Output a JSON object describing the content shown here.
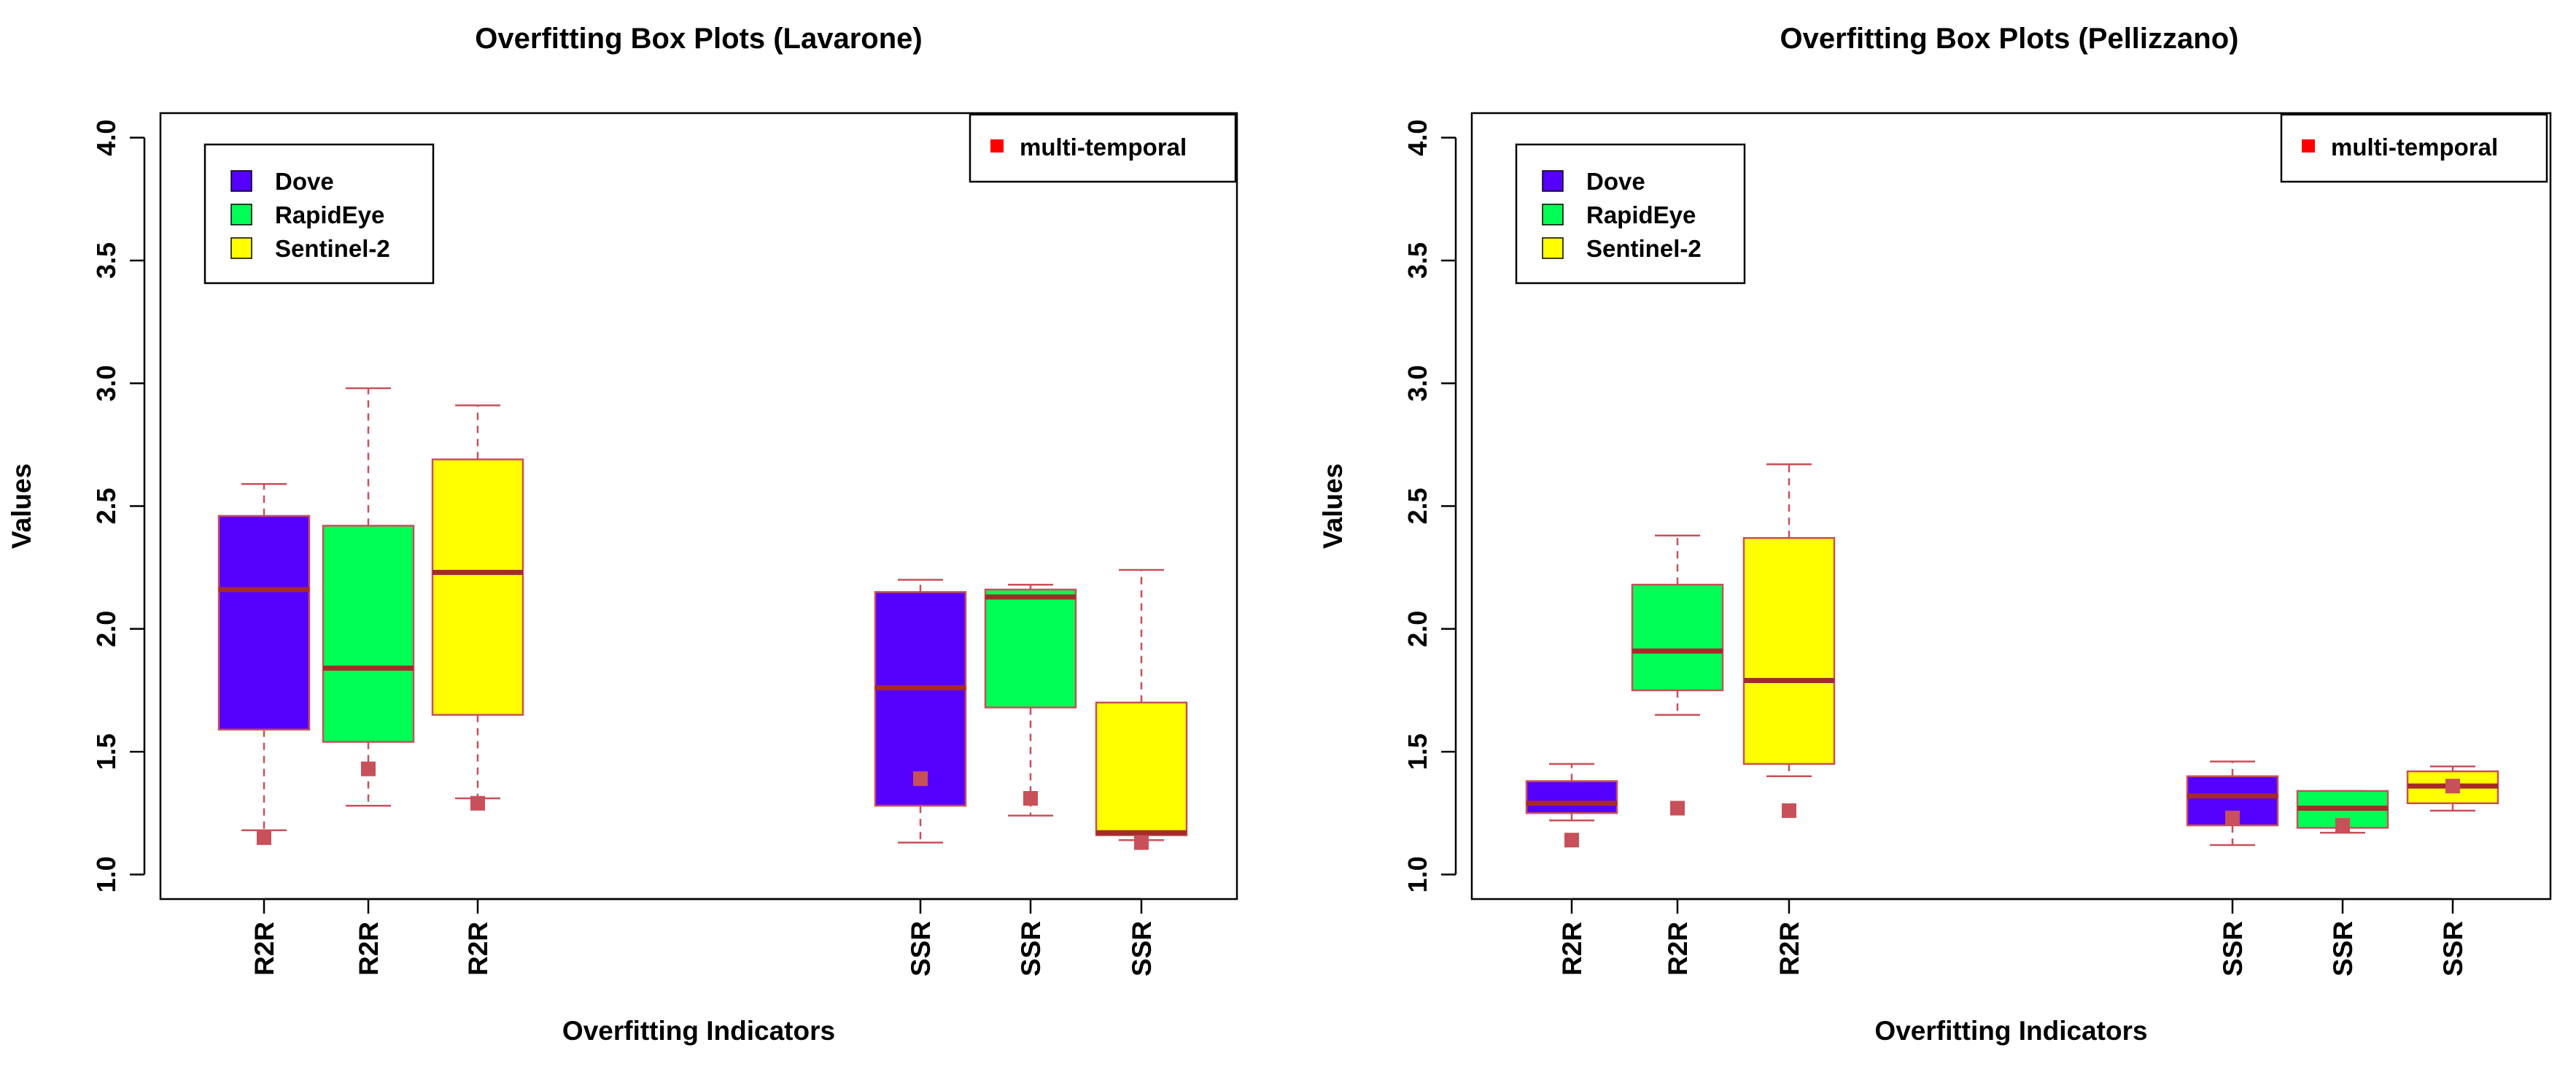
{
  "chart_data": [
    {
      "type": "boxplot",
      "title": "Overfitting Box Plots (Lavarone)",
      "xlabel": "Overfitting Indicators",
      "ylabel": "Values",
      "ylim": [
        0.9,
        4.1
      ],
      "yticks": [
        "1.0",
        "1.5",
        "2.0",
        "2.5",
        "3.0",
        "3.5",
        "4.0"
      ],
      "series_legend": [
        {
          "name": "Dove",
          "color": "#5500ff"
        },
        {
          "name": "RapidEye",
          "color": "#00ff55"
        },
        {
          "name": "Sentinel-2",
          "color": "#ffff00"
        }
      ],
      "marker_legend": {
        "label": "multi-temporal",
        "color": "#ff0000"
      },
      "boxes": [
        {
          "label": "R2R",
          "sensor": "Dove",
          "color": "#5500ff",
          "whisker_low": 1.18,
          "q1": 1.59,
          "median": 2.16,
          "q3": 2.46,
          "whisker_high": 2.59,
          "multi_temporal": 1.15
        },
        {
          "label": "R2R",
          "sensor": "RapidEye",
          "color": "#00ff55",
          "whisker_low": 1.28,
          "q1": 1.54,
          "median": 1.84,
          "q3": 2.42,
          "whisker_high": 2.98,
          "multi_temporal": 1.43
        },
        {
          "label": "R2R",
          "sensor": "Sentinel-2",
          "color": "#ffff00",
          "whisker_low": 1.31,
          "q1": 1.65,
          "median": 2.23,
          "q3": 2.69,
          "whisker_high": 2.91,
          "multi_temporal": 1.29
        },
        {
          "label": "SSR",
          "sensor": "Dove",
          "color": "#5500ff",
          "whisker_low": 1.13,
          "q1": 1.28,
          "median": 1.76,
          "q3": 2.15,
          "whisker_high": 2.2,
          "multi_temporal": 1.39
        },
        {
          "label": "SSR",
          "sensor": "RapidEye",
          "color": "#00ff55",
          "whisker_low": 1.24,
          "q1": 1.68,
          "median": 2.13,
          "q3": 2.16,
          "whisker_high": 2.18,
          "multi_temporal": 1.31
        },
        {
          "label": "SSR",
          "sensor": "Sentinel-2",
          "color": "#ffff00",
          "whisker_low": 1.14,
          "q1": 1.16,
          "median": 1.17,
          "q3": 1.7,
          "whisker_high": 2.24,
          "multi_temporal": 1.13
        }
      ]
    },
    {
      "type": "boxplot",
      "title": "Overfitting Box Plots (Pellizzano)",
      "xlabel": "Overfitting Indicators",
      "ylabel": "Values",
      "ylim": [
        0.9,
        4.1
      ],
      "yticks": [
        "1.0",
        "1.5",
        "2.0",
        "2.5",
        "3.0",
        "3.5",
        "4.0"
      ],
      "series_legend": [
        {
          "name": "Dove",
          "color": "#5500ff"
        },
        {
          "name": "RapidEye",
          "color": "#00ff55"
        },
        {
          "name": "Sentinel-2",
          "color": "#ffff00"
        }
      ],
      "marker_legend": {
        "label": "multi-temporal",
        "color": "#ff0000"
      },
      "boxes": [
        {
          "label": "R2R",
          "sensor": "Dove",
          "color": "#5500ff",
          "whisker_low": 1.22,
          "q1": 1.25,
          "median": 1.29,
          "q3": 1.38,
          "whisker_high": 1.45,
          "multi_temporal": 1.14
        },
        {
          "label": "R2R",
          "sensor": "RapidEye",
          "color": "#00ff55",
          "whisker_low": 1.65,
          "q1": 1.75,
          "median": 1.91,
          "q3": 2.18,
          "whisker_high": 2.38,
          "multi_temporal": 1.27
        },
        {
          "label": "R2R",
          "sensor": "Sentinel-2",
          "color": "#ffff00",
          "whisker_low": 1.4,
          "q1": 1.45,
          "median": 1.79,
          "q3": 2.37,
          "whisker_high": 2.67,
          "multi_temporal": 1.26
        },
        {
          "label": "SSR",
          "sensor": "Dove",
          "color": "#5500ff",
          "whisker_low": 1.12,
          "q1": 1.2,
          "median": 1.32,
          "q3": 1.4,
          "whisker_high": 1.46,
          "multi_temporal": 1.23
        },
        {
          "label": "SSR",
          "sensor": "RapidEye",
          "color": "#00ff55",
          "whisker_low": 1.17,
          "q1": 1.19,
          "median": 1.27,
          "q3": 1.34,
          "whisker_high": 1.34,
          "multi_temporal": 1.2
        },
        {
          "label": "SSR",
          "sensor": "Sentinel-2",
          "color": "#ffff00",
          "whisker_low": 1.26,
          "q1": 1.29,
          "median": 1.36,
          "q3": 1.42,
          "whisker_high": 1.44,
          "multi_temporal": 1.36
        }
      ]
    }
  ]
}
